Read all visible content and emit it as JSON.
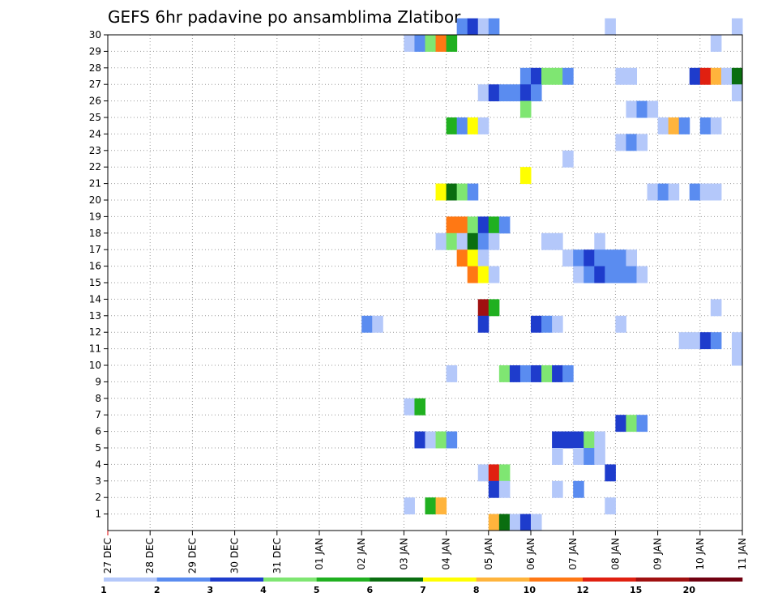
{
  "chart_data": {
    "type": "heatmap",
    "title": "GEFS 6hr padavine po ansamblima Zlatibor",
    "x_ticks": [
      "27 DEC",
      "28 DEC",
      "29 DEC",
      "30 DEC",
      "31 DEC",
      "01 JAN",
      "02 JAN",
      "03 JAN",
      "04 JAN",
      "05 JAN",
      "06 JAN",
      "07 JAN",
      "08 JAN",
      "09 JAN",
      "10 JAN",
      "11 JAN"
    ],
    "y_ticks": [
      "1",
      "2",
      "3",
      "4",
      "5",
      "6",
      "7",
      "8",
      "9",
      "10",
      "11",
      "12",
      "13",
      "14",
      "15",
      "16",
      "17",
      "18",
      "19",
      "20",
      "21",
      "22",
      "23",
      "24",
      "25",
      "26",
      "27",
      "28",
      "29",
      "30"
    ],
    "xlim": [
      "27 DEC 00Z",
      "11 JAN 00Z"
    ],
    "ylim": [
      0,
      30
    ],
    "time_step_hours": 6,
    "grid": true,
    "colorbar": {
      "position": "bottom",
      "labels": [
        "1",
        "2",
        "3",
        "4",
        "5",
        "6",
        "7",
        "8",
        "10",
        "12",
        "15",
        "20"
      ],
      "colors": [
        "#b4c8fa",
        "#5a8cf0",
        "#1e3ccc",
        "#7fe672",
        "#20b020",
        "#0a6e10",
        "#ffff00",
        "#ffb43c",
        "#ff7814",
        "#e02010",
        "#a01010",
        "#700010"
      ]
    },
    "cells": [
      [
        30,
        "04 JAN 06Z",
        2
      ],
      [
        30,
        "04 JAN 12Z",
        3
      ],
      [
        30,
        "04 JAN 18Z",
        1
      ],
      [
        30,
        "05 JAN 00Z",
        2
      ],
      [
        30,
        "07 JAN 18Z",
        1
      ],
      [
        30,
        "10 JAN 18Z",
        1
      ],
      [
        29,
        "03 JAN 00Z",
        1
      ],
      [
        29,
        "03 JAN 06Z",
        2
      ],
      [
        29,
        "03 JAN 12Z",
        4
      ],
      [
        29,
        "03 JAN 18Z",
        10
      ],
      [
        29,
        "04 JAN 00Z",
        5
      ],
      [
        29,
        "10 JAN 06Z",
        1
      ],
      [
        27,
        "05 JAN 18Z",
        2
      ],
      [
        27,
        "06 JAN 00Z",
        3
      ],
      [
        27,
        "06 JAN 06Z",
        4
      ],
      [
        27,
        "06 JAN 12Z",
        4
      ],
      [
        27,
        "06 JAN 18Z",
        2
      ],
      [
        27,
        "08 JAN 00Z",
        1
      ],
      [
        27,
        "08 JAN 06Z",
        1
      ],
      [
        27,
        "09 JAN 18Z",
        3
      ],
      [
        27,
        "10 JAN 00Z",
        12
      ],
      [
        27,
        "10 JAN 06Z",
        8
      ],
      [
        27,
        "10 JAN 12Z",
        1
      ],
      [
        27,
        "10 JAN 18Z",
        6
      ],
      [
        26,
        "04 JAN 18Z",
        1
      ],
      [
        26,
        "05 JAN 00Z",
        3
      ],
      [
        26,
        "05 JAN 06Z",
        2
      ],
      [
        26,
        "05 JAN 12Z",
        2
      ],
      [
        26,
        "05 JAN 18Z",
        3
      ],
      [
        26,
        "06 JAN 00Z",
        2
      ],
      [
        26,
        "10 JAN 18Z",
        1
      ],
      [
        25,
        "05 JAN 18Z",
        4
      ],
      [
        25,
        "08 JAN 06Z",
        1
      ],
      [
        25,
        "08 JAN 12Z",
        2
      ],
      [
        25,
        "08 JAN 18Z",
        1
      ],
      [
        24,
        "04 JAN 00Z",
        5
      ],
      [
        24,
        "04 JAN 06Z",
        2
      ],
      [
        24,
        "04 JAN 12Z",
        7
      ],
      [
        24,
        "04 JAN 18Z",
        1
      ],
      [
        24,
        "09 JAN 00Z",
        1
      ],
      [
        24,
        "09 JAN 06Z",
        8
      ],
      [
        24,
        "09 JAN 12Z",
        2
      ],
      [
        24,
        "10 JAN 00Z",
        2
      ],
      [
        24,
        "10 JAN 06Z",
        1
      ],
      [
        23,
        "08 JAN 00Z",
        1
      ],
      [
        23,
        "08 JAN 06Z",
        2
      ],
      [
        23,
        "08 JAN 12Z",
        1
      ],
      [
        22,
        "06 JAN 18Z",
        1
      ],
      [
        21,
        "05 JAN 18Z",
        7
      ],
      [
        20,
        "03 JAN 18Z",
        7
      ],
      [
        20,
        "04 JAN 00Z",
        6
      ],
      [
        20,
        "04 JAN 06Z",
        4
      ],
      [
        20,
        "04 JAN 12Z",
        2
      ],
      [
        20,
        "08 JAN 18Z",
        1
      ],
      [
        20,
        "09 JAN 00Z",
        2
      ],
      [
        20,
        "09 JAN 06Z",
        1
      ],
      [
        20,
        "09 JAN 18Z",
        2
      ],
      [
        20,
        "10 JAN 00Z",
        1
      ],
      [
        20,
        "10 JAN 06Z",
        1
      ],
      [
        18,
        "04 JAN 00Z",
        10
      ],
      [
        18,
        "04 JAN 06Z",
        10
      ],
      [
        18,
        "04 JAN 12Z",
        4
      ],
      [
        18,
        "04 JAN 18Z",
        3
      ],
      [
        18,
        "05 JAN 00Z",
        5
      ],
      [
        18,
        "05 JAN 06Z",
        2
      ],
      [
        17,
        "03 JAN 18Z",
        1
      ],
      [
        17,
        "04 JAN 00Z",
        4
      ],
      [
        17,
        "04 JAN 06Z",
        1
      ],
      [
        17,
        "04 JAN 12Z",
        6
      ],
      [
        17,
        "04 JAN 18Z",
        2
      ],
      [
        17,
        "05 JAN 00Z",
        1
      ],
      [
        17,
        "06 JAN 06Z",
        1
      ],
      [
        17,
        "06 JAN 12Z",
        1
      ],
      [
        17,
        "07 JAN 12Z",
        1
      ],
      [
        16,
        "04 JAN 06Z",
        10
      ],
      [
        16,
        "04 JAN 12Z",
        7
      ],
      [
        16,
        "04 JAN 18Z",
        1
      ],
      [
        16,
        "06 JAN 18Z",
        1
      ],
      [
        16,
        "07 JAN 00Z",
        2
      ],
      [
        16,
        "07 JAN 06Z",
        3
      ],
      [
        16,
        "07 JAN 12Z",
        2
      ],
      [
        16,
        "07 JAN 18Z",
        2
      ],
      [
        16,
        "08 JAN 00Z",
        2
      ],
      [
        16,
        "08 JAN 06Z",
        1
      ],
      [
        13,
        "04 JAN 18Z",
        15
      ],
      [
        13,
        "05 JAN 00Z",
        5
      ],
      [
        13,
        "10 JAN 06Z",
        1
      ],
      [
        12,
        "02 JAN 00Z",
        2
      ],
      [
        12,
        "02 JAN 06Z",
        1
      ],
      [
        12,
        "04 JAN 18Z",
        3
      ],
      [
        12,
        "06 JAN 00Z",
        3
      ],
      [
        12,
        "06 JAN 06Z",
        2
      ],
      [
        12,
        "06 JAN 12Z",
        1
      ],
      [
        12,
        "08 JAN 00Z",
        1
      ],
      [
        11,
        "09 JAN 12Z",
        1
      ],
      [
        11,
        "09 JAN 18Z",
        1
      ],
      [
        11,
        "10 JAN 00Z",
        3
      ],
      [
        11,
        "10 JAN 06Z",
        2
      ],
      [
        11,
        "10 JAN 18Z",
        1
      ],
      [
        10,
        "10 JAN 18Z",
        1
      ],
      [
        9,
        "04 JAN 00Z",
        1
      ],
      [
        9,
        "05 JAN 06Z",
        4
      ],
      [
        9,
        "05 JAN 12Z",
        3
      ],
      [
        9,
        "05 JAN 18Z",
        2
      ],
      [
        9,
        "06 JAN 00Z",
        3
      ],
      [
        9,
        "06 JAN 06Z",
        4
      ],
      [
        9,
        "06 JAN 12Z",
        3
      ],
      [
        9,
        "06 JAN 18Z",
        2
      ],
      [
        7,
        "03 JAN 00Z",
        1
      ],
      [
        7,
        "03 JAN 06Z",
        5
      ],
      [
        6,
        "08 JAN 00Z",
        3
      ],
      [
        6,
        "08 JAN 06Z",
        4
      ],
      [
        6,
        "08 JAN 12Z",
        2
      ],
      [
        5,
        "03 JAN 06Z",
        3
      ],
      [
        5,
        "03 JAN 12Z",
        1
      ],
      [
        5,
        "03 JAN 18Z",
        4
      ],
      [
        5,
        "04 JAN 00Z",
        2
      ],
      [
        5,
        "06 JAN 12Z",
        3
      ],
      [
        5,
        "06 JAN 18Z",
        3
      ],
      [
        5,
        "07 JAN 00Z",
        3
      ],
      [
        5,
        "07 JAN 06Z",
        4
      ],
      [
        5,
        "07 JAN 12Z",
        1
      ],
      [
        4,
        "06 JAN 12Z",
        1
      ],
      [
        4,
        "07 JAN 00Z",
        1
      ],
      [
        4,
        "07 JAN 06Z",
        2
      ],
      [
        4,
        "07 JAN 12Z",
        1
      ],
      [
        3,
        "04 JAN 18Z",
        1
      ],
      [
        3,
        "05 JAN 00Z",
        12
      ],
      [
        3,
        "05 JAN 06Z",
        4
      ],
      [
        3,
        "07 JAN 18Z",
        3
      ],
      [
        2,
        "05 JAN 00Z",
        3
      ],
      [
        2,
        "05 JAN 06Z",
        1
      ],
      [
        2,
        "06 JAN 12Z",
        1
      ],
      [
        2,
        "07 JAN 00Z",
        2
      ],
      [
        1,
        "03 JAN 00Z",
        1
      ],
      [
        1,
        "03 JAN 12Z",
        5
      ],
      [
        1,
        "03 JAN 18Z",
        8
      ],
      [
        1,
        "07 JAN 18Z",
        1
      ],
      [
        0,
        "05 JAN 00Z",
        8
      ],
      [
        0,
        "05 JAN 06Z",
        6
      ],
      [
        0,
        "05 JAN 12Z",
        1
      ],
      [
        0,
        "05 JAN 18Z",
        3
      ],
      [
        0,
        "06 JAN 00Z",
        1
      ]
    ],
    "rows_15": [
      [
        15,
        "04 JAN 12Z",
        10
      ],
      [
        15,
        "04 JAN 18Z",
        7
      ],
      [
        15,
        "05 JAN 00Z",
        1
      ],
      [
        15,
        "07 JAN 00Z",
        1
      ],
      [
        15,
        "07 JAN 06Z",
        2
      ],
      [
        15,
        "07 JAN 12Z",
        3
      ],
      [
        15,
        "07 JAN 18Z",
        2
      ],
      [
        15,
        "08 JAN 00Z",
        2
      ],
      [
        15,
        "08 JAN 06Z",
        2
      ],
      [
        15,
        "08 JAN 12Z",
        1
      ]
    ]
  }
}
